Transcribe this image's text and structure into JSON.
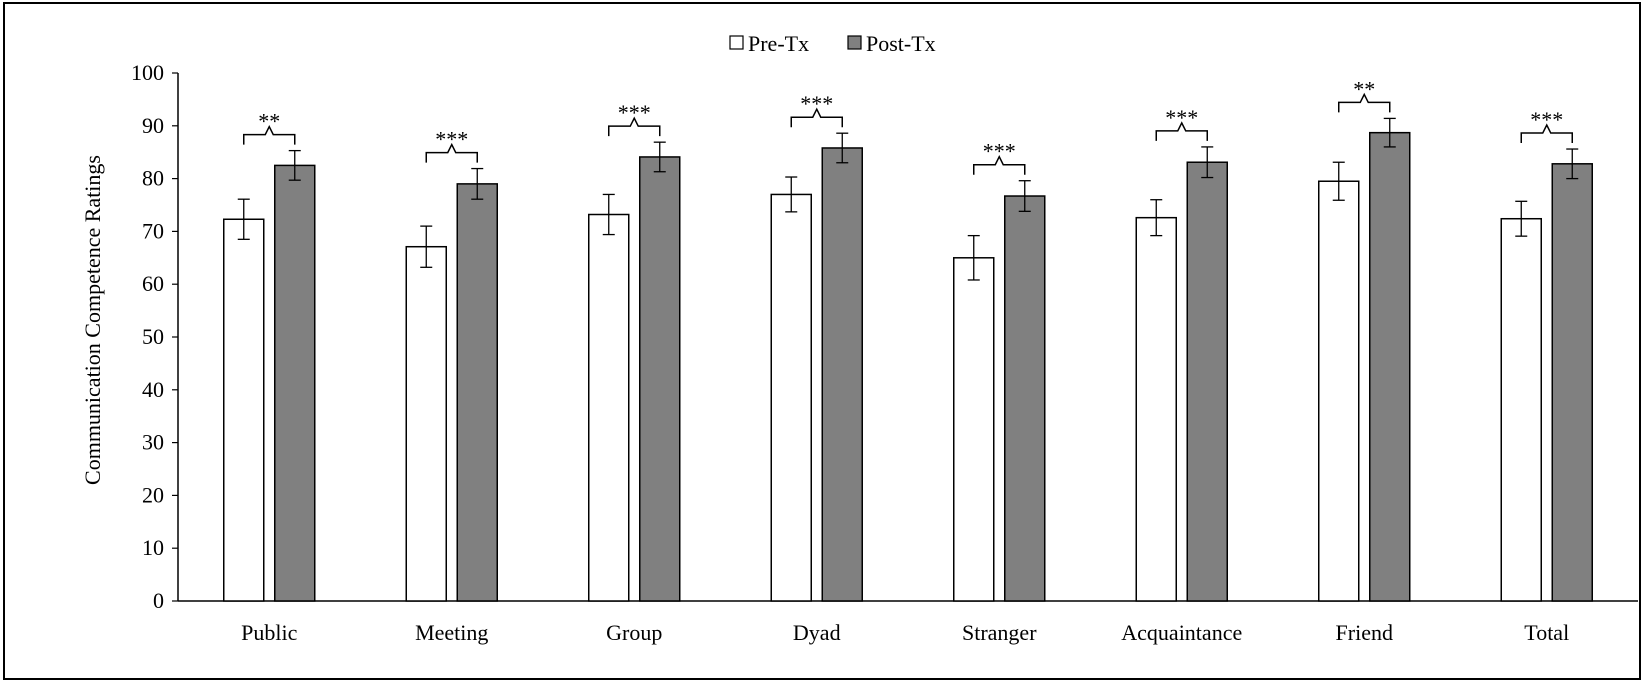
{
  "chart_data": {
    "type": "bar",
    "title": "",
    "xlabel": "",
    "ylabel": "Communication Competence Ratings",
    "ylim": [
      0,
      100
    ],
    "yticks": [
      0,
      10,
      20,
      30,
      40,
      50,
      60,
      70,
      80,
      90,
      100
    ],
    "grid": false,
    "legend_position": "top-center",
    "categories": [
      "Public",
      "Meeting",
      "Group",
      "Dyad",
      "Stranger",
      "Acquaintance",
      "Friend",
      "Total"
    ],
    "series": [
      {
        "name": "Pre-Tx",
        "color": "#ffffff",
        "values": [
          72.3,
          67.1,
          73.2,
          77.0,
          65.0,
          72.6,
          79.5,
          72.4
        ],
        "error": [
          3.8,
          3.9,
          3.8,
          3.3,
          4.2,
          3.4,
          3.6,
          3.3
        ]
      },
      {
        "name": "Post-Tx",
        "color": "#808080",
        "values": [
          82.5,
          79.0,
          84.1,
          85.8,
          76.7,
          83.1,
          88.7,
          82.8
        ],
        "error": [
          2.8,
          2.9,
          2.8,
          2.8,
          2.9,
          2.9,
          2.7,
          2.8
        ]
      }
    ],
    "significance": [
      "**",
      "***",
      "***",
      "***",
      "***",
      "***",
      "**",
      "***"
    ]
  }
}
